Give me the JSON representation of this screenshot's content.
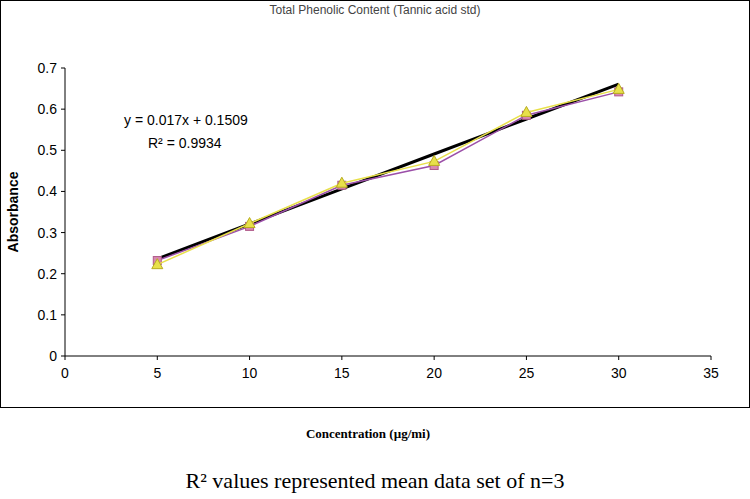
{
  "chart_data": {
    "type": "line",
    "title": "Total Phenolic Content (Tannic acid std)",
    "x_label": "Concentration (µg/mi)",
    "y_label": "Absorbance",
    "annotations": [
      "y = 0.017x + 0.1509",
      "R² = 0.9934"
    ],
    "caption": "R² values represented mean data set of n=3",
    "x": [
      5,
      10,
      15,
      20,
      25,
      30
    ],
    "series": [
      {
        "color": "#9b4fa8",
        "marker": "square",
        "line_style": "solid",
        "values": [
          0.232,
          0.315,
          0.415,
          0.463,
          0.585,
          0.642
        ]
      },
      {
        "color": "#e8e04a",
        "marker": "triangle",
        "line_style": "solid",
        "values": [
          0.222,
          0.322,
          0.42,
          0.473,
          0.592,
          0.648
        ]
      },
      {
        "color": "#000000",
        "marker": "none",
        "line_style": "solid",
        "values": [
          0.236,
          0.321,
          0.406,
          0.491,
          0.576,
          0.661
        ]
      }
    ],
    "xlim": [
      0,
      35
    ],
    "xticks": [
      0,
      5,
      10,
      15,
      20,
      25,
      30,
      35
    ],
    "ylim": [
      0,
      0.7
    ],
    "yticks": [
      0,
      0.1,
      0.2,
      0.3,
      0.4,
      0.5,
      0.6,
      0.7
    ],
    "grid": false
  }
}
